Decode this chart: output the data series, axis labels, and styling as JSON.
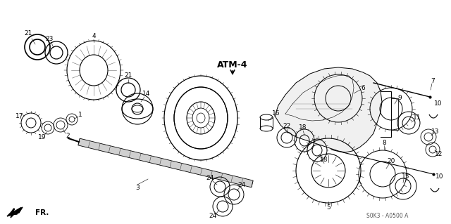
{
  "bg_color": "#f5f5f0",
  "fig_width": 6.4,
  "fig_height": 3.19,
  "dpi": 100,
  "watermark": "S0K3 - A0500 A",
  "fr_label": "FR.",
  "atm_label": "ATM-4",
  "ec": "black",
  "lw_thin": 0.4,
  "lw_med": 0.7,
  "lw_thick": 1.2
}
